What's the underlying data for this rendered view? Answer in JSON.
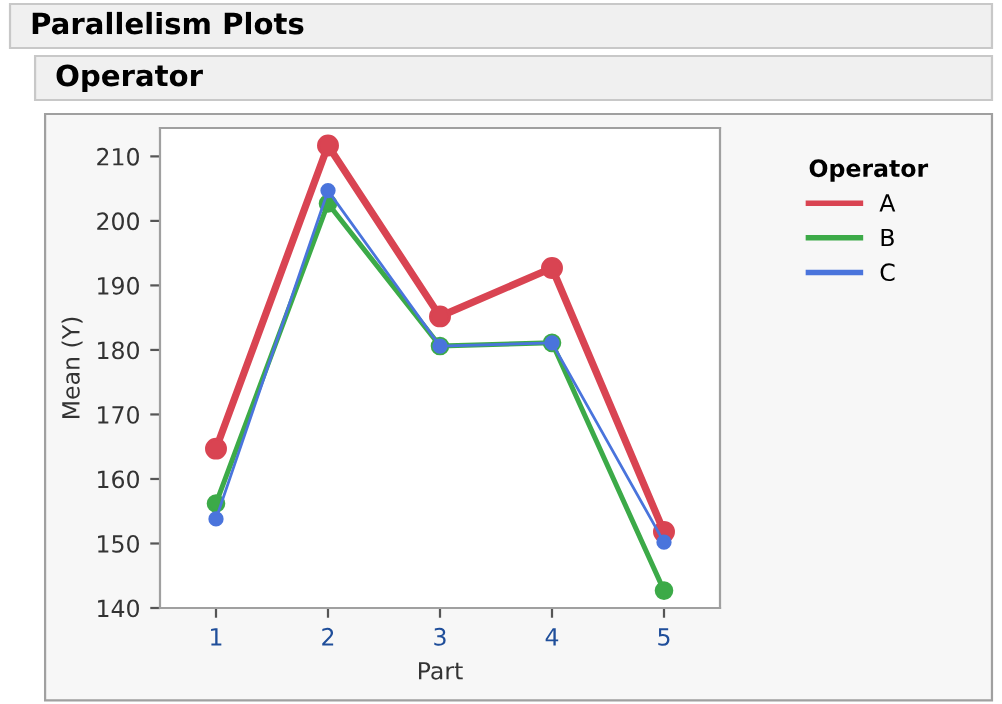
{
  "chart_data": {
    "type": "line",
    "title": "Parallelism Plots",
    "subtitle": "Operator",
    "xlabel": "Part",
    "ylabel": "Mean (Y)",
    "legend_title": "Operator",
    "categories": [
      "1",
      "2",
      "3",
      "4",
      "5"
    ],
    "series": [
      {
        "name": "A",
        "color": "#d94452",
        "values": [
          164.7,
          211.7,
          185.2,
          192.7,
          151.8
        ]
      },
      {
        "name": "B",
        "color": "#3caa48",
        "values": [
          156.2,
          202.7,
          180.6,
          181.1,
          142.7
        ]
      },
      {
        "name": "C",
        "color": "#4a74dc",
        "values": [
          153.8,
          204.7,
          180.6,
          181.1,
          150.2
        ]
      }
    ],
    "ylim": [
      140,
      214.4
    ],
    "yticks": [
      140,
      150,
      160,
      170,
      180,
      190,
      200,
      210
    ],
    "grid": false,
    "legend": "right",
    "marker": "circle",
    "line_style": "solid"
  }
}
